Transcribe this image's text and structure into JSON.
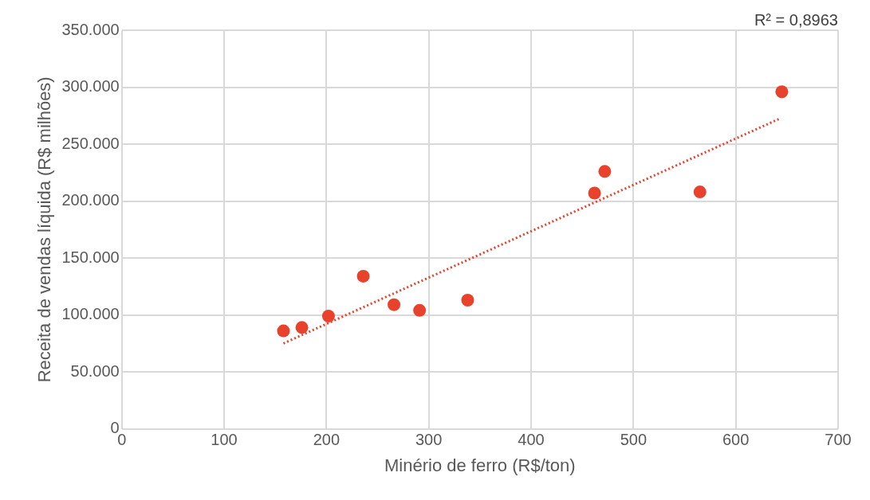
{
  "chart_data": {
    "type": "scatter",
    "xlabel": "Minério de ferro (R$/ton)",
    "ylabel": "Receita de vendas líquida (R$ milhões)",
    "annotations": [
      "R² = 0,8963"
    ],
    "xlim": [
      0,
      700
    ],
    "xticks": [
      0,
      100,
      200,
      300,
      400,
      500,
      600,
      700
    ],
    "ylim": [
      0,
      350000
    ],
    "yticks": [
      0,
      {
        "value": 50000,
        "label": "50.000"
      },
      {
        "value": 100000,
        "label": "100.000"
      },
      {
        "value": 150000,
        "label": "150.000"
      },
      {
        "value": 200000,
        "label": "200.000"
      },
      {
        "value": 250000,
        "label": "250.000"
      },
      {
        "value": 300000,
        "label": "300.000"
      },
      {
        "value": 350000,
        "label": "350.000"
      }
    ],
    "grid": true,
    "legend": false,
    "marker": "circle",
    "series": [
      {
        "color": "#e8412c",
        "x": [
          158,
          176,
          202,
          236,
          266,
          291,
          338,
          462,
          472,
          565,
          645
        ],
        "values": [
          86000,
          89000,
          99000,
          134000,
          109000,
          104000,
          113000,
          207000,
          226000,
          208000,
          296000
        ]
      },
      {
        "type": "line",
        "color": "#e8412c",
        "line_style": "dotted",
        "marker": "none",
        "x": [
          158,
          642
        ],
        "values": [
          75000,
          272000
        ]
      }
    ]
  }
}
